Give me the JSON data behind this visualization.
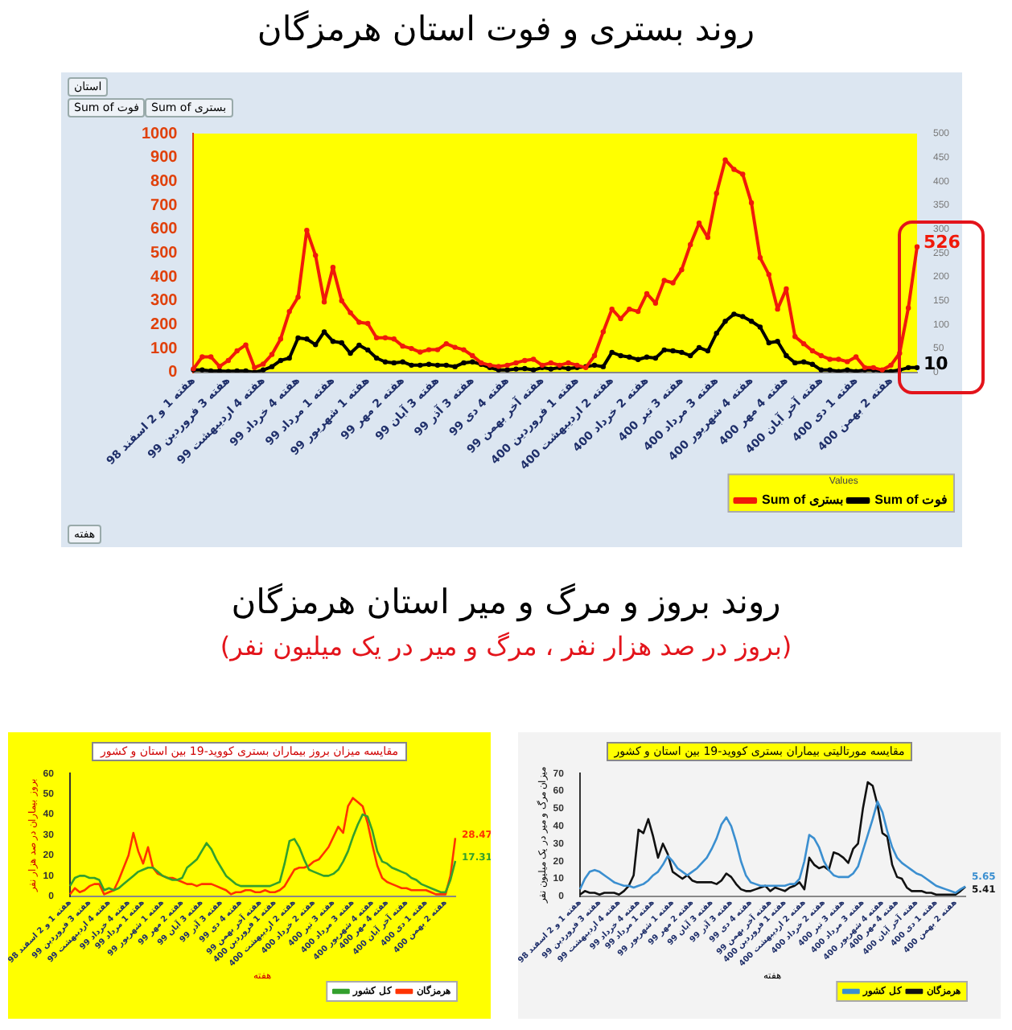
{
  "chart_data": [
    {
      "type": "line",
      "title": "روند بستری و فوت استان هرمزگان",
      "legend": "bottom right",
      "legend_title": "Values",
      "marker": "circle",
      "annotations": [
        "استان",
        "Sum of فوت",
        "Sum of بستری",
        "هفته"
      ],
      "categories": [
        "هفته 1 و 2 اسفند 98",
        null,
        null,
        null,
        "هفته 3 فروردین 99",
        null,
        null,
        null,
        "هفته 4 اردیبهشت 99",
        null,
        null,
        null,
        "هفته 4 خرداد 99",
        null,
        null,
        null,
        "هفته 1 مرداد 99",
        null,
        null,
        null,
        "هفته 1 شهریور 99",
        null,
        null,
        null,
        "هفته 2 مهر 99",
        null,
        null,
        null,
        "هفته 3 آبان 99",
        null,
        null,
        null,
        "هفته 3 آذر 99",
        null,
        null,
        null,
        "هفته 4 دی 99",
        null,
        null,
        null,
        "هفته آخر بهمن 99",
        null,
        null,
        null,
        "هفته 1 فروردین 400",
        null,
        null,
        null,
        "هفته 2 اردیبهشت 400",
        null,
        null,
        null,
        "هفته 2 خرداد 400",
        null,
        null,
        null,
        "هفته 3 تیر 400",
        null,
        null,
        null,
        "هفته 3 مرداد 400",
        null,
        null,
        null,
        "هفته 4 شهریور 400",
        null,
        null,
        null,
        "هفته 4 مهر 400",
        null,
        null,
        null,
        "هفته آخر آبان 400",
        null,
        null,
        null,
        "هفته 1 دی 400",
        null,
        null,
        null,
        "هفته 2 بهمن 400",
        null,
        null,
        null
      ],
      "series": [
        {
          "name": "Sum of بستری",
          "color": "#f01a0a",
          "values": [
            15,
            65,
            65,
            25,
            50,
            90,
            115,
            20,
            35,
            75,
            140,
            255,
            315,
            595,
            490,
            295,
            440,
            300,
            250,
            210,
            205,
            145,
            145,
            140,
            110,
            100,
            85,
            95,
            95,
            120,
            105,
            95,
            70,
            40,
            30,
            25,
            30,
            40,
            50,
            55,
            30,
            40,
            30,
            40,
            30,
            20,
            70,
            170,
            265,
            225,
            265,
            255,
            330,
            290,
            385,
            375,
            430,
            535,
            625,
            565,
            750,
            890,
            850,
            830,
            710,
            480,
            410,
            265,
            350,
            150,
            120,
            90,
            70,
            55,
            55,
            45,
            65,
            20,
            20,
            10,
            30,
            80,
            270,
            526
          ],
          "value_labels": [
            null,
            null,
            null,
            null,
            null,
            null,
            null,
            null,
            null,
            null,
            null,
            null,
            null,
            null,
            null,
            null,
            null,
            null,
            null,
            null,
            null,
            null,
            null,
            null,
            null,
            null,
            null,
            null,
            null,
            null,
            null,
            null,
            null,
            null,
            null,
            null,
            null,
            null,
            null,
            null,
            null,
            null,
            null,
            null,
            null,
            null,
            null,
            null,
            null,
            null,
            null,
            null,
            null,
            null,
            null,
            null,
            null,
            null,
            null,
            null,
            null,
            null,
            null,
            null,
            null,
            null,
            null,
            null,
            null,
            null,
            null,
            null,
            null,
            null,
            null,
            null,
            null,
            null,
            null,
            null,
            null,
            null,
            null,
            "526"
          ]
        },
        {
          "name": "Sum of فوت",
          "color": "#000000",
          "axis": "y2",
          "values": [
            5,
            5,
            3,
            3,
            2,
            3,
            3,
            0,
            5,
            12,
            25,
            30,
            72,
            70,
            58,
            85,
            65,
            62,
            40,
            57,
            47,
            30,
            22,
            20,
            22,
            15,
            15,
            17,
            15,
            15,
            12,
            20,
            22,
            17,
            10,
            5,
            5,
            7,
            8,
            5,
            10,
            7,
            10,
            8,
            10,
            12,
            15,
            12,
            42,
            35,
            32,
            27,
            32,
            30,
            47,
            45,
            42,
            35,
            52,
            45,
            82,
            107,
            122,
            117,
            107,
            95,
            62,
            65,
            35,
            20,
            22,
            17,
            5,
            5,
            2,
            5,
            2,
            5,
            5,
            2,
            2,
            5,
            10,
            10
          ],
          "value_labels": [
            null,
            null,
            null,
            null,
            null,
            null,
            null,
            null,
            null,
            null,
            null,
            null,
            null,
            null,
            null,
            null,
            null,
            null,
            null,
            null,
            null,
            null,
            null,
            null,
            null,
            null,
            null,
            null,
            null,
            null,
            null,
            null,
            null,
            null,
            null,
            null,
            null,
            null,
            null,
            null,
            null,
            null,
            null,
            null,
            null,
            null,
            null,
            null,
            null,
            null,
            null,
            null,
            null,
            null,
            null,
            null,
            null,
            null,
            null,
            null,
            null,
            null,
            null,
            null,
            null,
            null,
            null,
            null,
            null,
            null,
            null,
            null,
            null,
            null,
            null,
            null,
            null,
            null,
            null,
            null,
            null,
            null,
            null,
            "10"
          ]
        }
      ],
      "ylim": [
        0,
        1000
      ],
      "yticks": [
        0,
        100,
        200,
        300,
        400,
        500,
        600,
        700,
        800,
        900,
        1000
      ],
      "y2lim": [
        0,
        500
      ],
      "y2ticks": [
        0,
        50,
        100,
        150,
        200,
        250,
        300,
        350,
        400,
        450,
        500
      ]
    },
    {
      "type": "other",
      "title": "روند بروز و مرگ و میر استان هرمزگان",
      "subtitle": "(بروز در صد هزار نفر ، مرگ و میر در یک میلیون نفر)"
    },
    {
      "type": "line",
      "title": "مقایسه میزان بروز بیماران بستری کووید-19 بین استان و کشور",
      "ylabel": "بروز بیماران در صد هزار نفر",
      "xlabel": "هفته",
      "legend": "bottom right",
      "marker": "none",
      "categories": [
        "هفته 1 و 2 اسفند 98",
        null,
        null,
        null,
        "هفته 3 فروردین 99",
        null,
        null,
        null,
        "هفته 4 اردیبهشت 99",
        null,
        null,
        null,
        "هفته 4 خرداد 99",
        null,
        null,
        "هفته 1 مرداد 99",
        null,
        null,
        null,
        "هفته 1 شهریور 99",
        null,
        null,
        null,
        "هفته 2 مهر 99",
        null,
        null,
        null,
        "هفته 3 آبان 99",
        null,
        null,
        null,
        "هفته 3 آذر 99",
        null,
        null,
        null,
        "هفته 4 دی 99",
        null,
        null,
        null,
        "هفته آخر بهمن 99",
        null,
        null,
        "هفته 1 فروردین 400",
        null,
        null,
        null,
        "هفته 2 اردیبهشت 400",
        null,
        null,
        null,
        "هفته 2 خرداد 400",
        null,
        null,
        null,
        "هفته 3 تیر 400",
        null,
        null,
        null,
        "هفته 3 مرداد 400",
        null,
        null,
        null,
        "هفته 4 شهریور 400",
        null,
        null,
        "هفته 4 مهر 400",
        null,
        null,
        null,
        "هفته آخر آبان 400",
        null,
        null,
        null,
        "هفته 1 دی 400",
        null,
        null,
        null,
        "هفته 2 بهمن 400",
        null,
        null
      ],
      "series": [
        {
          "name": "کل کشور",
          "color": "#33a02c",
          "values": [
            5,
            9,
            10,
            10,
            9,
            9,
            8,
            3,
            4,
            3,
            4,
            6,
            8,
            10,
            12,
            13,
            14,
            14,
            12,
            10,
            9,
            8,
            8,
            9,
            14,
            16,
            18,
            22,
            26,
            23,
            18,
            14,
            10,
            8,
            6,
            5,
            5,
            5,
            5,
            5,
            5,
            5,
            6,
            7,
            16,
            27,
            28,
            24,
            18,
            13,
            12,
            11,
            10,
            10,
            11,
            13,
            17,
            22,
            29,
            35,
            40,
            39,
            32,
            22,
            17,
            16,
            14,
            13,
            12,
            11,
            9,
            8,
            6,
            5,
            4,
            3,
            2,
            2,
            8,
            17.31
          ],
          "value_labels": [
            null,
            null,
            null,
            null,
            null,
            null,
            null,
            null,
            null,
            null,
            null,
            null,
            null,
            null,
            null,
            null,
            null,
            null,
            null,
            null,
            null,
            null,
            null,
            null,
            null,
            null,
            null,
            null,
            null,
            null,
            null,
            null,
            null,
            null,
            null,
            null,
            null,
            null,
            null,
            null,
            null,
            null,
            null,
            null,
            null,
            null,
            null,
            null,
            null,
            null,
            null,
            null,
            null,
            null,
            null,
            null,
            null,
            null,
            null,
            null,
            null,
            null,
            null,
            null,
            null,
            null,
            null,
            null,
            null,
            null,
            null,
            null,
            null,
            null,
            null,
            null,
            null,
            null,
            null,
            "17.31"
          ]
        },
        {
          "name": "هرمزگان",
          "color": "#ff3300",
          "values": [
            1,
            4,
            2,
            3,
            5,
            6,
            6,
            1,
            2,
            3,
            8,
            14,
            20,
            31,
            22,
            16,
            24,
            14,
            11,
            10,
            9,
            9,
            8,
            7,
            6,
            6,
            5,
            6,
            6,
            6,
            5,
            4,
            3,
            1,
            2,
            2,
            3,
            3,
            2,
            2,
            3,
            2,
            2,
            3,
            5,
            9,
            13,
            14,
            14,
            15,
            17,
            18,
            21,
            24,
            29,
            34,
            31,
            44,
            48,
            46,
            44,
            36,
            25,
            15,
            9,
            7,
            6,
            5,
            4,
            4,
            3,
            3,
            3,
            3,
            2,
            1,
            1,
            1,
            10,
            28.47
          ],
          "value_labels": [
            null,
            null,
            null,
            null,
            null,
            null,
            null,
            null,
            null,
            null,
            null,
            null,
            null,
            null,
            null,
            null,
            null,
            null,
            null,
            null,
            null,
            null,
            null,
            null,
            null,
            null,
            null,
            null,
            null,
            null,
            null,
            null,
            null,
            null,
            null,
            null,
            null,
            null,
            null,
            null,
            null,
            null,
            null,
            null,
            null,
            null,
            null,
            null,
            null,
            null,
            null,
            null,
            null,
            null,
            null,
            null,
            null,
            null,
            null,
            null,
            null,
            null,
            null,
            null,
            null,
            null,
            null,
            null,
            null,
            null,
            null,
            null,
            null,
            null,
            null,
            null,
            null,
            null,
            null,
            "28.47"
          ]
        }
      ],
      "ylim": [
        0,
        60
      ],
      "yticks": [
        0,
        10,
        20,
        30,
        40,
        50,
        60
      ]
    },
    {
      "type": "line",
      "title": "مقایسه مورتالیتی بیماران بستری کووید-19 بین استان و کشور",
      "ylabel": "میزان مرگ و میر در یک میلیون نفر",
      "xlabel": "هفته",
      "legend": "bottom right",
      "marker": "none",
      "categories": [
        "هفته 1 و 2 اسفند 98",
        null,
        null,
        null,
        "هفته 3 فروردین 99",
        null,
        null,
        null,
        "هفته 4 اردیبهشت 99",
        null,
        null,
        null,
        "هفته 4 خرداد 99",
        null,
        null,
        "هفته 1 مرداد 99",
        null,
        null,
        null,
        "هفته 1 شهریور 99",
        null,
        null,
        null,
        "هفته 2 مهر 99",
        null,
        null,
        null,
        "هفته 3 آبان 99",
        null,
        null,
        null,
        "هفته 3 آذر 99",
        null,
        null,
        null,
        "هفته 4 دی 99",
        null,
        null,
        null,
        "هفته آخر بهمن 99",
        null,
        null,
        "هفته 1 فروردین 400",
        null,
        null,
        null,
        "هفته 2 اردیبهشت 400",
        null,
        null,
        null,
        "هفته 2 خرداد 400",
        null,
        null,
        null,
        "هفته 3 تیر 400",
        null,
        null,
        null,
        "هفته 3 مرداد 400",
        null,
        null,
        null,
        "هفته 4 شهریور 400",
        null,
        null,
        "هفته 4 مهر 400",
        null,
        null,
        null,
        "هفته آخر آبان 400",
        null,
        null,
        null,
        "هفته 1 دی 400",
        null,
        null,
        null,
        "هفته 2 بهمن 400",
        null,
        null
      ],
      "series": [
        {
          "name": "کل کشور",
          "color": "#3b8fd0",
          "values": [
            4,
            10,
            14,
            15,
            14,
            12,
            10,
            8,
            7,
            6,
            6,
            5,
            6,
            7,
            9,
            12,
            14,
            18,
            23,
            20,
            16,
            14,
            12,
            14,
            16,
            19,
            22,
            27,
            33,
            41,
            45,
            40,
            31,
            20,
            12,
            8,
            7,
            6,
            6,
            6,
            6,
            6,
            6,
            7,
            7,
            10,
            20,
            35,
            33,
            28,
            20,
            15,
            12,
            11,
            11,
            11,
            13,
            17,
            26,
            35,
            44,
            54,
            48,
            37,
            28,
            22,
            19,
            17,
            15,
            13,
            12,
            10,
            8,
            6,
            5,
            4,
            3,
            2,
            4,
            5.65
          ],
          "value_labels": [
            null,
            null,
            null,
            null,
            null,
            null,
            null,
            null,
            null,
            null,
            null,
            null,
            null,
            null,
            null,
            null,
            null,
            null,
            null,
            null,
            null,
            null,
            null,
            null,
            null,
            null,
            null,
            null,
            null,
            null,
            null,
            null,
            null,
            null,
            null,
            null,
            null,
            null,
            null,
            null,
            null,
            null,
            null,
            null,
            null,
            null,
            null,
            null,
            null,
            null,
            null,
            null,
            null,
            null,
            null,
            null,
            null,
            null,
            null,
            null,
            null,
            null,
            null,
            null,
            null,
            null,
            null,
            null,
            null,
            null,
            null,
            null,
            null,
            null,
            null,
            null,
            null,
            null,
            null,
            "5.65"
          ]
        },
        {
          "name": "هرمزگان",
          "color": "#111111",
          "values": [
            1,
            3,
            2,
            2,
            1,
            2,
            2,
            2,
            1,
            3,
            6,
            12,
            38,
            36,
            44,
            34,
            22,
            30,
            24,
            14,
            12,
            10,
            12,
            9,
            8,
            8,
            8,
            8,
            7,
            9,
            13,
            11,
            7,
            4,
            3,
            3,
            4,
            5,
            6,
            3,
            5,
            4,
            3,
            5,
            6,
            8,
            4,
            22,
            18,
            16,
            17,
            15,
            25,
            24,
            22,
            19,
            27,
            30,
            50,
            65,
            63,
            52,
            36,
            34,
            18,
            11,
            10,
            5,
            3,
            3,
            3,
            2,
            2,
            1,
            1,
            1,
            1,
            1,
            3,
            5.41
          ],
          "value_labels": [
            null,
            null,
            null,
            null,
            null,
            null,
            null,
            null,
            null,
            null,
            null,
            null,
            null,
            null,
            null,
            null,
            null,
            null,
            null,
            null,
            null,
            null,
            null,
            null,
            null,
            null,
            null,
            null,
            null,
            null,
            null,
            null,
            null,
            null,
            null,
            null,
            null,
            null,
            null,
            null,
            null,
            null,
            null,
            null,
            null,
            null,
            null,
            null,
            null,
            null,
            null,
            null,
            null,
            null,
            null,
            null,
            null,
            null,
            null,
            null,
            null,
            null,
            null,
            null,
            null,
            null,
            null,
            null,
            null,
            null,
            null,
            null,
            null,
            null,
            null,
            null,
            null,
            null,
            null,
            "5.41"
          ]
        }
      ],
      "ylim": [
        0,
        70
      ],
      "yticks": [
        0,
        10,
        20,
        30,
        40,
        50,
        60,
        70
      ]
    }
  ]
}
